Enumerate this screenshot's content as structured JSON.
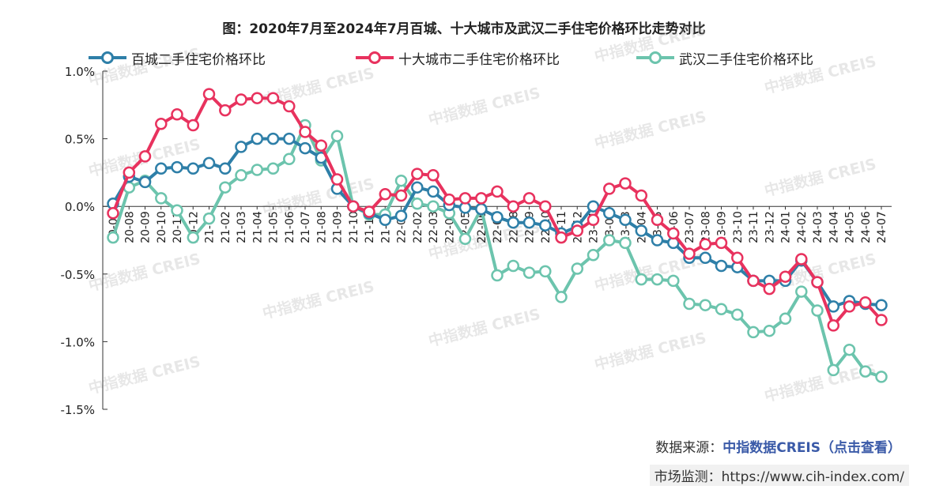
{
  "title": "图：2020年7月至2024年7月百城、十大城市及武汉二手住宅价格环比走势对比",
  "source": {
    "label": "数据来源：",
    "name": "中指数据CREIS（点击查看）"
  },
  "monitor": {
    "label": "市场监测：",
    "url": "https://www.cih-index.com/"
  },
  "watermark": "中指数据 CREIS",
  "colors": {
    "s1": "#2e7fa8",
    "s2": "#e8325e",
    "s3": "#6cc4ad"
  },
  "chart_data": {
    "type": "line",
    "title": "图：2020年7月至2024年7月百城、十大城市及武汉二手住宅价格环比走势对比",
    "xlabel": "",
    "ylabel": "",
    "ylim": [
      -1.5,
      1.0
    ],
    "yticks": [
      "1.0%",
      "0.5%",
      "0.0%",
      "-0.5%",
      "-1.0%",
      "-1.5%"
    ],
    "legend_position": "top",
    "grid": false,
    "categories": [
      "20-07",
      "20-08",
      "20-09",
      "20-10",
      "20-11",
      "20-12",
      "21-01",
      "21-02",
      "21-03",
      "21-04",
      "21-05",
      "21-06",
      "21-07",
      "21-08",
      "21-09",
      "21-10",
      "21-11",
      "21-12",
      "22-01",
      "22-02",
      "22-03",
      "22-04",
      "22-05",
      "22-06",
      "22-07",
      "22-08",
      "22-09",
      "22-10",
      "22-11",
      "22-12",
      "23-01",
      "23-02",
      "23-03",
      "23-04",
      "23-05",
      "23-06",
      "23-07",
      "23-08",
      "23-09",
      "23-10",
      "23-11",
      "23-12",
      "24-01",
      "24-02",
      "24-03",
      "24-04",
      "24-05",
      "24-06",
      "24-07"
    ],
    "series": [
      {
        "name": "百城二手住宅价格环比",
        "values": [
          0.02,
          0.22,
          0.18,
          0.28,
          0.29,
          0.28,
          0.32,
          0.28,
          0.44,
          0.5,
          0.5,
          0.5,
          0.43,
          0.36,
          0.13,
          0.0,
          -0.05,
          -0.1,
          -0.07,
          0.14,
          0.11,
          0.01,
          -0.01,
          -0.02,
          -0.08,
          -0.12,
          -0.12,
          -0.14,
          -0.2,
          -0.15,
          0.0,
          -0.05,
          -0.1,
          -0.18,
          -0.25,
          -0.27,
          -0.38,
          -0.38,
          -0.44,
          -0.45,
          -0.55,
          -0.55,
          -0.55,
          -0.4,
          -0.56,
          -0.74,
          -0.7,
          -0.72,
          -0.73
        ]
      },
      {
        "name": "十大城市二手住宅价格环比",
        "values": [
          -0.05,
          0.25,
          0.37,
          0.61,
          0.68,
          0.6,
          0.83,
          0.71,
          0.79,
          0.8,
          0.8,
          0.74,
          0.55,
          0.45,
          0.2,
          0.0,
          -0.04,
          0.09,
          0.08,
          0.24,
          0.23,
          0.05,
          0.06,
          0.06,
          0.11,
          0.0,
          0.06,
          0.0,
          -0.23,
          -0.18,
          -0.1,
          0.13,
          0.17,
          0.08,
          -0.1,
          -0.2,
          -0.35,
          -0.28,
          -0.27,
          -0.38,
          -0.55,
          -0.61,
          -0.52,
          -0.39,
          -0.56,
          -0.88,
          -0.74,
          -0.71,
          -0.84
        ]
      },
      {
        "name": "武汉二手住宅价格环比",
        "values": [
          -0.23,
          0.14,
          0.19,
          0.06,
          -0.03,
          -0.23,
          -0.09,
          0.14,
          0.23,
          0.27,
          0.28,
          0.35,
          0.6,
          0.34,
          0.52,
          0.0,
          -0.06,
          -0.06,
          0.19,
          0.02,
          0.0,
          -0.05,
          -0.24,
          -0.02,
          -0.51,
          -0.44,
          -0.49,
          -0.48,
          -0.67,
          -0.46,
          -0.36,
          -0.25,
          -0.27,
          -0.54,
          -0.54,
          -0.55,
          -0.72,
          -0.73,
          -0.76,
          -0.8,
          -0.93,
          -0.92,
          -0.83,
          -0.63,
          -0.77,
          -1.21,
          -1.06,
          -1.22,
          -1.26
        ]
      }
    ]
  }
}
